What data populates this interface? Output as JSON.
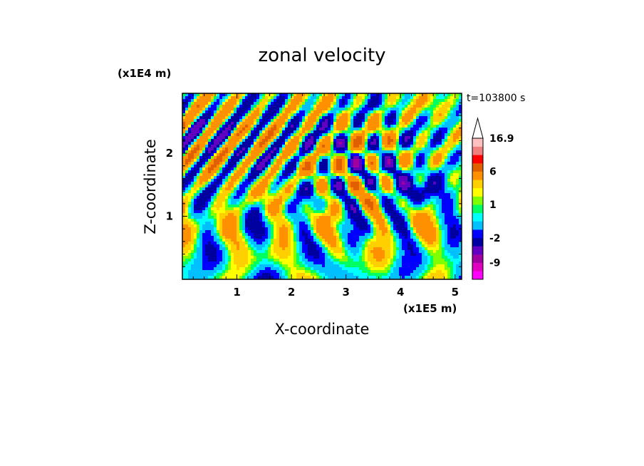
{
  "chart_data": {
    "type": "heatmap",
    "title": "zonal velocity",
    "xlabel": "X-coordinate",
    "ylabel": "Z-coordinate",
    "x_unit": "(x1E5 m)",
    "y_unit": "(x1E4 m)",
    "time_label": "t=103800 s",
    "xlim": [
      0,
      5.12
    ],
    "ylim": [
      0,
      2.95
    ],
    "x_ticks": [
      "1",
      "2",
      "3",
      "4",
      "5"
    ],
    "x_tick_values": [
      1,
      2,
      3,
      4,
      5
    ],
    "y_ticks": [
      "1",
      "2"
    ],
    "y_tick_values": [
      1,
      2
    ],
    "colorbar": {
      "extend": "max",
      "tick_labels": [
        "16.9",
        "6",
        "1",
        "-2",
        "-9"
      ],
      "tick_values": [
        16.9,
        6,
        1,
        -2,
        -9
      ],
      "levels": [
        -15,
        -12,
        -9,
        -6,
        -4,
        -2,
        -1,
        0,
        0.5,
        1,
        1.5,
        2,
        3,
        6,
        9,
        12,
        16.9
      ],
      "colors": [
        "#ff00ff",
        "#e000c0",
        "#a000a0",
        "#6000c0",
        "#0000a0",
        "#0000ff",
        "#00c0ff",
        "#00ffff",
        "#00ff60",
        "#80ff00",
        "#ffff00",
        "#ffd000",
        "#ff9000",
        "#e06000",
        "#ff0000",
        "#f08080",
        "#ffc0c0"
      ]
    }
  }
}
